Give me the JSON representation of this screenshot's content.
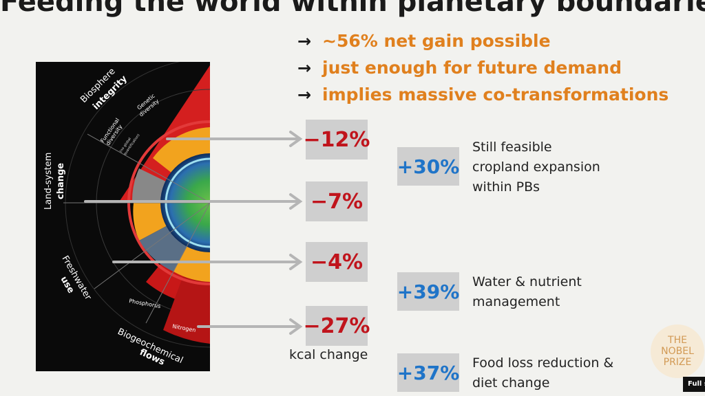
{
  "title": "Feeding the world within planetary boundaries",
  "bullets": [
    {
      "arrow": "→",
      "text": "~56% net gain possible"
    },
    {
      "arrow": "→",
      "text": "just enough for future demand"
    },
    {
      "arrow": "→",
      "text": "implies massive co-transformations"
    }
  ],
  "figure": {
    "sectors": {
      "biosphere": {
        "line1": "Biosphere",
        "line2": "integrity"
      },
      "land": {
        "line1": "Land-system",
        "line2": "change"
      },
      "freshwater": {
        "line1": "Freshwater",
        "line2": "use"
      },
      "biogeochemical": {
        "line1": "Biogeochemical",
        "line2": "flows"
      }
    },
    "sublabels": {
      "genetic": {
        "line1": "Genetic",
        "line2": "diversity"
      },
      "functional": {
        "line1": "Functional",
        "line2": "diversity"
      },
      "functional_sub": {
        "line1": "(no global",
        "line2": "quantification)"
      },
      "phosphorus": "Phosphorus",
      "nitrogen": "Nitrogen"
    }
  },
  "changes": [
    "−12%",
    "−7%",
    "−4%",
    "−27%"
  ],
  "kcal_label": "kcal change",
  "gains": [
    {
      "value": "+30%",
      "lines": [
        "Still feasible",
        "cropland expansion",
        "within PBs"
      ]
    },
    {
      "value": "+39%",
      "lines": [
        "Water & nutrient",
        "management"
      ]
    },
    {
      "value": "+37%",
      "lines": [
        "Food loss reduction &",
        "diet change"
      ]
    }
  ],
  "logo": {
    "line1": "THE",
    "line2": "NOBEL",
    "line3": "PRIZE"
  },
  "fullscreen_label": "Full s",
  "colors": {
    "accent_orange": "#e0801e",
    "loss_red": "#c0141c",
    "gain_blue": "#1f74c8",
    "box_grey": "#cfcfcf"
  }
}
